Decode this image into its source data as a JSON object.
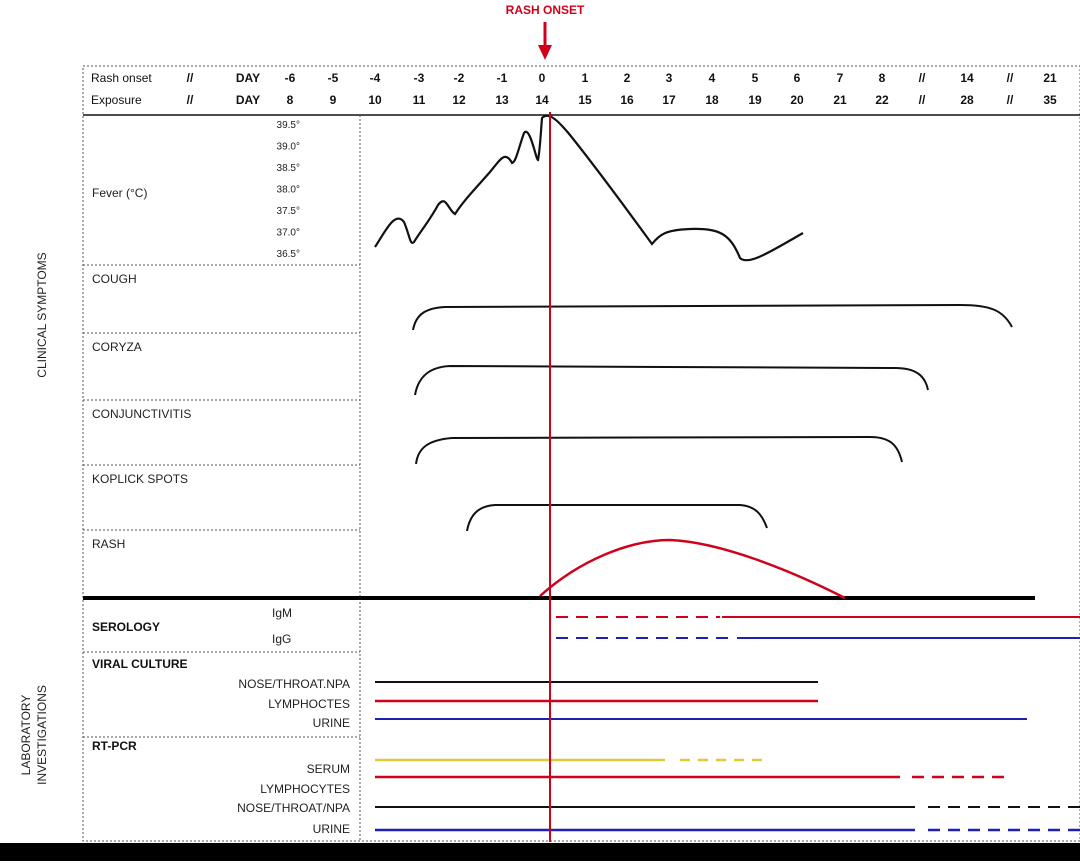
{
  "title": "RASH ONSET",
  "colors": {
    "red": "#d0021b",
    "blue": "#1f1fb0",
    "black": "#111111",
    "yellow": "#e0c93a",
    "grid": "#666666"
  },
  "header": {
    "rash_label": "Rash onset",
    "exposure_label": "Exposure",
    "cols": [
      {
        "rash": "//",
        "exposure": "//"
      },
      {
        "rash": "DAY",
        "exposure": "DAY"
      },
      {
        "rash": "-6",
        "exposure": "8"
      },
      {
        "rash": "-5",
        "exposure": "9"
      },
      {
        "rash": "-4",
        "exposure": "10"
      },
      {
        "rash": "-3",
        "exposure": "11"
      },
      {
        "rash": "-2",
        "exposure": "12"
      },
      {
        "rash": "-1",
        "exposure": "13"
      },
      {
        "rash": "0",
        "exposure": "14"
      },
      {
        "rash": "1",
        "exposure": "15"
      },
      {
        "rash": "2",
        "exposure": "16"
      },
      {
        "rash": "3",
        "exposure": "17"
      },
      {
        "rash": "4",
        "exposure": "18"
      },
      {
        "rash": "5",
        "exposure": "19"
      },
      {
        "rash": "6",
        "exposure": "20"
      },
      {
        "rash": "7",
        "exposure": "21"
      },
      {
        "rash": "8",
        "exposure": "22"
      },
      {
        "rash": "//",
        "exposure": "//"
      },
      {
        "rash": "14",
        "exposure": "28"
      },
      {
        "rash": "//",
        "exposure": "//"
      },
      {
        "rash": "21",
        "exposure": "35"
      }
    ]
  },
  "clinical_side_label": "CLINICAL SYMPTOMS",
  "lab_side_label_line1": "LABORATORY",
  "lab_side_label_line2": "INVESTIGATIONS",
  "fever": {
    "label": "Fever (°C)",
    "ticks": [
      "39.5°",
      "39.0°",
      "38.5°",
      "38.0°",
      "37.5°",
      "37.0°",
      "36.5°"
    ]
  },
  "symptoms": [
    {
      "label": "COUGH",
      "start_day": -3.9,
      "end_day": 14
    },
    {
      "label": "CORYZA",
      "start_day": -3.9,
      "end_day": 8.3
    },
    {
      "label": "CONJUNCTIVITIS",
      "start_day": -3.9,
      "end_day": 8.1
    },
    {
      "label": "KOPLICK SPOTS",
      "start_day": -1.9,
      "end_day": 5.3
    },
    {
      "label": "RASH",
      "start_day": 0,
      "end_day": 7
    }
  ],
  "serology": {
    "label": "SEROLOGY",
    "igm": "IgM",
    "igg": "IgG"
  },
  "viral_culture": {
    "label": "VIRAL CULTURE",
    "items": [
      "NOSE/THROAT.NPA",
      "LYMPHOCTES",
      "URINE"
    ]
  },
  "rtpcr": {
    "label": "RT-PCR",
    "items": [
      "SERUM",
      "LYMPHOCYTES",
      "NOSE/THROAT/NPA",
      "URINE"
    ]
  }
}
